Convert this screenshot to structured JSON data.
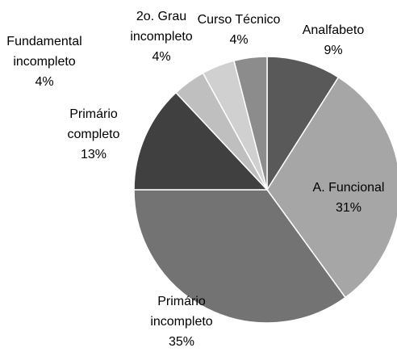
{
  "chart_data": {
    "type": "pie",
    "categories": [
      "Analfabeto",
      "A. Funcional",
      "Primário incompleto",
      "Primário completo",
      "Fundamental incompleto",
      "2o. Grau incompleto",
      "Curso Técnico"
    ],
    "values": [
      9,
      31,
      35,
      13,
      4,
      4,
      4
    ],
    "value_labels": [
      "9%",
      "31%",
      "35%",
      "13%",
      "4%",
      "4%",
      "4%"
    ],
    "colors": [
      "#595959",
      "#a6a6a6",
      "#737373",
      "#404040",
      "#bfbfbf",
      "#d0d0d0",
      "#8c8c8c"
    ]
  }
}
